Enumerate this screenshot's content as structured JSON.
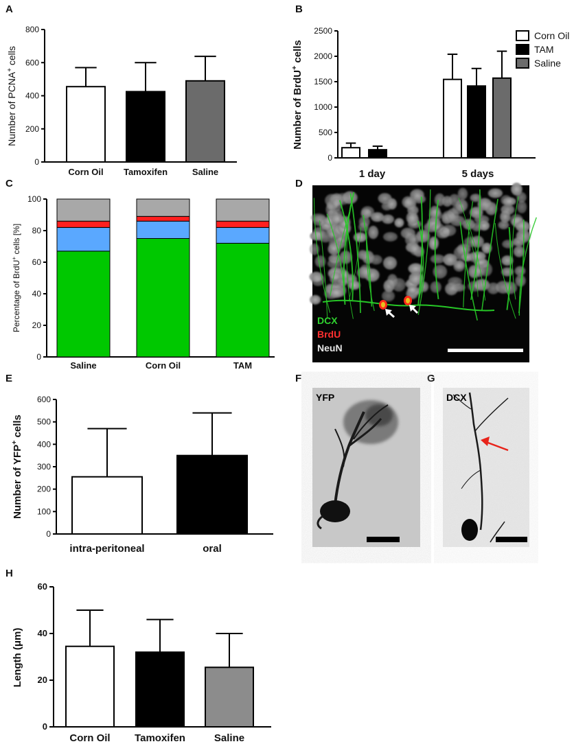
{
  "colors": {
    "white": "#ffffff",
    "black": "#000000",
    "gray": "#6b6b6b",
    "gray_light": "#8c8c8c",
    "green": "#00c800",
    "blue": "#5aa8ff",
    "red": "#ff2020",
    "lightgray": "#a8a8a8",
    "arrow_red": "#e8231a"
  },
  "panels": {
    "A": "A",
    "B": "B",
    "C": "C",
    "D": "D",
    "E": "E",
    "F": "F",
    "G": "G",
    "H": "H"
  },
  "chart_data": [
    {
      "panel": "A",
      "type": "bar",
      "ylabel_pre": "Number of PCNA",
      "ylabel_sup": "+",
      "ylabel_post": " cells",
      "ylim": [
        0,
        800
      ],
      "yticks": [
        0,
        200,
        400,
        600,
        800
      ],
      "categories": [
        "Corn Oil",
        "Tamoxifen",
        "Saline"
      ],
      "values": [
        455,
        425,
        490
      ],
      "errors": [
        115,
        175,
        148
      ],
      "fills": [
        "white",
        "black",
        "gray"
      ]
    },
    {
      "panel": "B",
      "type": "bar",
      "ylabel_pre": "Number of BrdU",
      "ylabel_sup": "+",
      "ylabel_post": " cells",
      "ylim": [
        0,
        2500
      ],
      "yticks": [
        0,
        500,
        1000,
        1500,
        2000,
        2500
      ],
      "categories": [
        "1 day",
        "5 days"
      ],
      "series": [
        {
          "name": "Corn Oil",
          "values": [
            200,
            1545
          ],
          "errors": [
            90,
            495
          ],
          "fill": "white"
        },
        {
          "name": "TAM",
          "values": [
            160,
            1415
          ],
          "errors": [
            70,
            345
          ],
          "fill": "black"
        },
        {
          "name": "Saline",
          "values": [
            null,
            1570
          ],
          "errors": [
            null,
            530
          ],
          "fill": "gray"
        }
      ],
      "legend": "top-right"
    },
    {
      "panel": "C",
      "type": "bar",
      "stacked": true,
      "ylabel_pre": "Percentage of BrdU",
      "ylabel_sup": "+",
      "ylabel_post": " cells [%]",
      "ylim": [
        0,
        100
      ],
      "yticks": [
        0,
        20,
        40,
        60,
        80,
        100
      ],
      "categories": [
        "Saline",
        "Corn Oil",
        "TAM"
      ],
      "segments": [
        {
          "fill": "green",
          "values": [
            67,
            75,
            72
          ]
        },
        {
          "fill": "blue",
          "values": [
            15,
            11,
            10
          ]
        },
        {
          "fill": "red",
          "values": [
            4,
            3,
            4
          ]
        },
        {
          "fill": "lightgray",
          "values": [
            14,
            11,
            14
          ]
        }
      ]
    },
    {
      "panel": "E",
      "type": "bar",
      "ylabel_pre": "Number of YFP",
      "ylabel_sup": "+",
      "ylabel_post": " cells",
      "ylim": [
        0,
        600
      ],
      "yticks": [
        0,
        100,
        200,
        300,
        400,
        500,
        600
      ],
      "categories": [
        "intra-peritoneal",
        "oral"
      ],
      "values": [
        255,
        350
      ],
      "errors": [
        215,
        190
      ],
      "fills": [
        "white",
        "black"
      ]
    },
    {
      "panel": "H",
      "type": "bar",
      "ylabel_pre": "Length (μm)",
      "ylabel_sup": "",
      "ylabel_post": "",
      "ylim": [
        0,
        60
      ],
      "yticks": [
        0,
        20,
        40,
        60
      ],
      "categories": [
        "Corn Oil",
        "Tamoxifen",
        "Saline"
      ],
      "values": [
        34.5,
        32,
        25.5
      ],
      "errors": [
        15.5,
        14,
        14.5
      ],
      "fills": [
        "white",
        "black",
        "gray_light"
      ]
    }
  ],
  "micrographs": {
    "D": {
      "labels": [
        {
          "text": "DCX",
          "color": "#2fd32f"
        },
        {
          "text": "BrdU",
          "color": "#ff3030"
        },
        {
          "text": "NeuN",
          "color": "#e6e6e6"
        }
      ]
    },
    "F": {
      "label": "YFP"
    },
    "G": {
      "label": "DCX"
    }
  }
}
